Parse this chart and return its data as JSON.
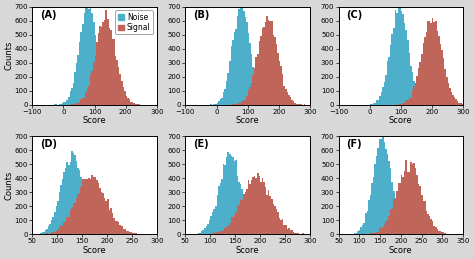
{
  "panels": [
    {
      "label": "A",
      "noise_mean": 80,
      "noise_std": 28,
      "signal_mean": 135,
      "signal_std": 32,
      "xlim": [
        -100,
        300
      ],
      "xticks": [
        -100,
        0,
        100,
        200,
        300
      ],
      "ylim": [
        0,
        700
      ],
      "yticks": [
        0,
        100,
        200,
        300,
        400,
        500,
        600,
        700
      ]
    },
    {
      "label": "B",
      "noise_mean": 80,
      "noise_std": 28,
      "signal_mean": 165,
      "signal_std": 32,
      "xlim": [
        -100,
        300
      ],
      "xticks": [
        -100,
        0,
        100,
        200,
        300
      ],
      "ylim": [
        0,
        700
      ],
      "yticks": [
        0,
        100,
        200,
        300,
        400,
        500,
        600,
        700
      ]
    },
    {
      "label": "C",
      "noise_mean": 95,
      "noise_std": 28,
      "signal_mean": 200,
      "signal_std": 32,
      "xlim": [
        -100,
        300
      ],
      "xticks": [
        -100,
        0,
        100,
        200,
        300
      ],
      "ylim": [
        0,
        700
      ],
      "yticks": [
        0,
        100,
        200,
        300,
        400,
        500,
        600,
        700
      ]
    },
    {
      "label": "D",
      "noise_mean": 130,
      "noise_std": 22,
      "signal_mean": 168,
      "signal_std": 30,
      "xlim": [
        50,
        300
      ],
      "xticks": [
        50,
        100,
        150,
        200,
        250,
        300
      ],
      "ylim": [
        0,
        700
      ],
      "yticks": [
        0,
        100,
        200,
        300,
        400,
        500,
        600,
        700
      ]
    },
    {
      "label": "E",
      "noise_mean": 140,
      "noise_std": 22,
      "signal_mean": 193,
      "signal_std": 30,
      "xlim": [
        50,
        300
      ],
      "xticks": [
        50,
        100,
        150,
        200,
        250,
        300
      ],
      "ylim": [
        0,
        700
      ],
      "yticks": [
        0,
        100,
        200,
        300,
        400,
        500,
        600,
        700
      ]
    },
    {
      "label": "F",
      "noise_mean": 155,
      "noise_std": 22,
      "signal_mean": 220,
      "signal_std": 30,
      "xlim": [
        50,
        350
      ],
      "xticks": [
        50,
        100,
        150,
        200,
        250,
        300,
        350
      ],
      "ylim": [
        0,
        700
      ],
      "yticks": [
        0,
        100,
        200,
        300,
        400,
        500,
        600,
        700
      ]
    }
  ],
  "noise_color": "#4DAFCA",
  "signal_color": "#C0655A",
  "n_samples": 10000,
  "bins": 80,
  "alpha": 1.0,
  "xlabel": "Score",
  "ylabel": "Counts",
  "bg_color": "#FFFFFF",
  "fig_bg_color": "#D8D8D8",
  "label_fontsize": 7,
  "axis_fontsize": 6,
  "tick_fontsize": 5,
  "legend_fontsize": 5.5
}
